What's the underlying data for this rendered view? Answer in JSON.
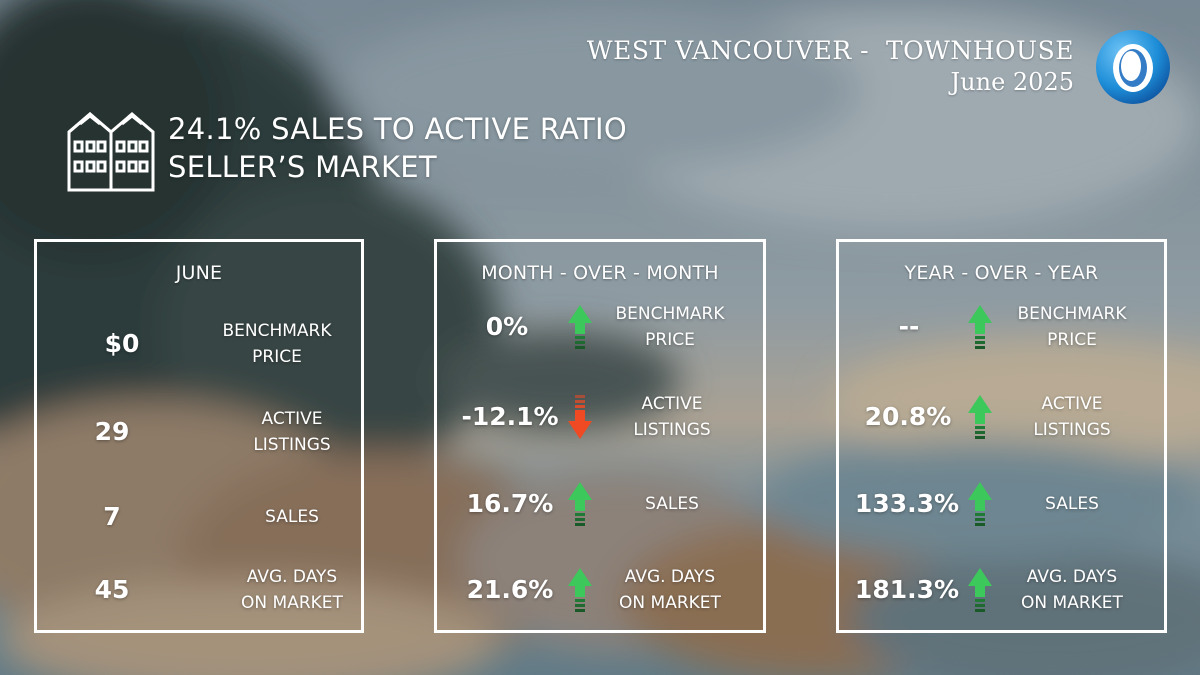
{
  "header": {
    "location": "WEST VANCOUVER -  TOWNHOUSE",
    "period": "June 2025"
  },
  "headline": {
    "ratio_line": "24.1% SALES TO ACTIVE RATIO",
    "market_line": "SELLER’S MARKET"
  },
  "icons": {
    "logo": "logo-ring-icon",
    "building": "townhouse-building-icon",
    "up": "arrow-up-icon",
    "down": "arrow-down-icon"
  },
  "colors": {
    "up_arrow": "#3cc85a",
    "down_arrow": "#f04a24",
    "logo_blue": "#1e8ed8"
  },
  "panels": {
    "june": {
      "title": "JUNE",
      "rows": [
        {
          "value": "$0",
          "label1": "BENCHMARK",
          "label2": "PRICE"
        },
        {
          "value": "29",
          "label1": "ACTIVE",
          "label2": "LISTINGS"
        },
        {
          "value": "7",
          "label1": "SALES",
          "label2": ""
        },
        {
          "value": "45",
          "label1": "AVG. DAYS",
          "label2": "ON MARKET"
        }
      ]
    },
    "mom": {
      "title": "MONTH - OVER - MONTH",
      "rows": [
        {
          "value": "0%",
          "direction": "up",
          "label1": "BENCHMARK",
          "label2": "PRICE"
        },
        {
          "value": "-12.1%",
          "direction": "down",
          "label1": "ACTIVE",
          "label2": "LISTINGS"
        },
        {
          "value": "16.7%",
          "direction": "up",
          "label1": "SALES",
          "label2": ""
        },
        {
          "value": "21.6%",
          "direction": "up",
          "label1": "AVG. DAYS",
          "label2": "ON MARKET"
        }
      ]
    },
    "yoy": {
      "title": "YEAR - OVER - YEAR",
      "rows": [
        {
          "value": "--",
          "direction": "up",
          "label1": "BENCHMARK",
          "label2": "PRICE"
        },
        {
          "value": "20.8%",
          "direction": "up",
          "label1": "ACTIVE",
          "label2": "LISTINGS"
        },
        {
          "value": "133.3%",
          "direction": "up",
          "label1": "SALES",
          "label2": ""
        },
        {
          "value": "181.3%",
          "direction": "up",
          "label1": "AVG. DAYS",
          "label2": "ON MARKET"
        }
      ]
    }
  }
}
